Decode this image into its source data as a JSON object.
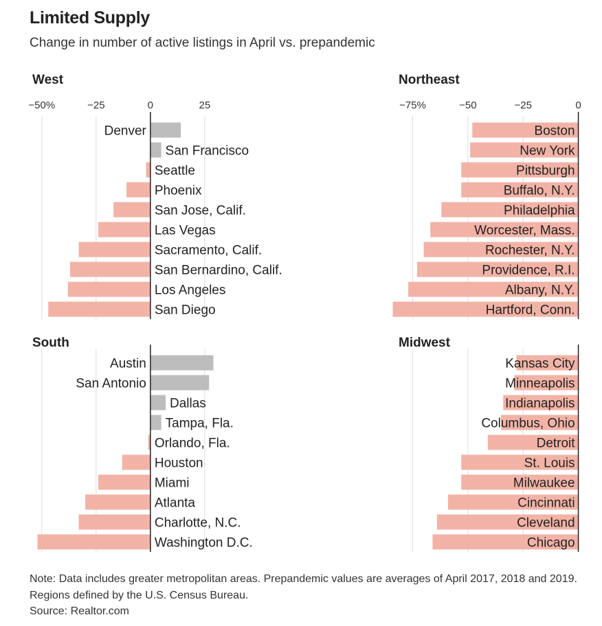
{
  "title": "Limited Supply",
  "subtitle": "Change in number of active listings in April vs. prepandemic",
  "note": "Note: Data includes greater metropolitan areas. Prepandemic values are averages of April 2017, 2018 and 2019. Regions defined by the U.S. Census Bureau.",
  "source": "Source: Realtor.com",
  "colors": {
    "positive": "#bdbdbd",
    "negative": "#f2b3a6"
  },
  "chart_data": [
    {
      "type": "bar",
      "orientation": "horizontal",
      "region": "West",
      "xlim": [
        -55,
        32
      ],
      "ticks": [
        -50,
        -25,
        0,
        25
      ],
      "tick_labels": [
        "−50%",
        "−25",
        "0",
        "25"
      ],
      "categories": [
        "Denver",
        "San Francisco",
        "Seattle",
        "Phoenix",
        "San Jose, Calif.",
        "Las Vegas",
        "Sacramento, Calif.",
        "San Bernardino, Calif.",
        "Los Angeles",
        "San Diego"
      ],
      "values": [
        14,
        5,
        -2,
        -11,
        -17,
        -24,
        -33,
        -37,
        -38,
        -47
      ]
    },
    {
      "type": "bar",
      "orientation": "horizontal",
      "region": "Northeast",
      "xlim": [
        -82,
        2
      ],
      "ticks": [
        -75,
        -50,
        -25,
        0
      ],
      "tick_labels": [
        "−75%",
        "−50",
        "−25",
        "0"
      ],
      "categories": [
        "Boston",
        "New York",
        "Pittsburgh",
        "Buffalo, N.Y.",
        "Philadelphia",
        "Worcester, Mass.",
        "Rochester, N.Y.",
        "Providence, R.I.",
        "Albany, N.Y.",
        "Hartford, Conn."
      ],
      "values": [
        -48,
        -49,
        -53,
        -53,
        -62,
        -67,
        -70,
        -73,
        -77,
        -84
      ]
    },
    {
      "type": "bar",
      "orientation": "horizontal",
      "region": "South",
      "xlim": [
        -55,
        32
      ],
      "ticks": [
        -50,
        -25,
        0,
        25
      ],
      "tick_labels": [],
      "categories": [
        "Austin",
        "San Antonio",
        "Dallas",
        "Tampa, Fla.",
        "Orlando, Fla.",
        "Houston",
        "Miami",
        "Atlanta",
        "Charlotte, N.C.",
        "Washington D.C."
      ],
      "values": [
        29,
        27,
        7,
        5,
        -1,
        -13,
        -24,
        -30,
        -33,
        -52
      ]
    },
    {
      "type": "bar",
      "orientation": "horizontal",
      "region": "Midwest",
      "xlim": [
        -82,
        2
      ],
      "ticks": [
        -75,
        -50,
        -25,
        0
      ],
      "tick_labels": [],
      "categories": [
        "Kansas City",
        "Minneapolis",
        "Indianapolis",
        "Columbus, Ohio",
        "Detroit",
        "St. Louis",
        "Milwaukee",
        "Cincinnati",
        "Cleveland",
        "Chicago"
      ],
      "values": [
        -28,
        -29,
        -34,
        -35,
        -41,
        -53,
        -53,
        -59,
        -64,
        -66
      ]
    }
  ]
}
